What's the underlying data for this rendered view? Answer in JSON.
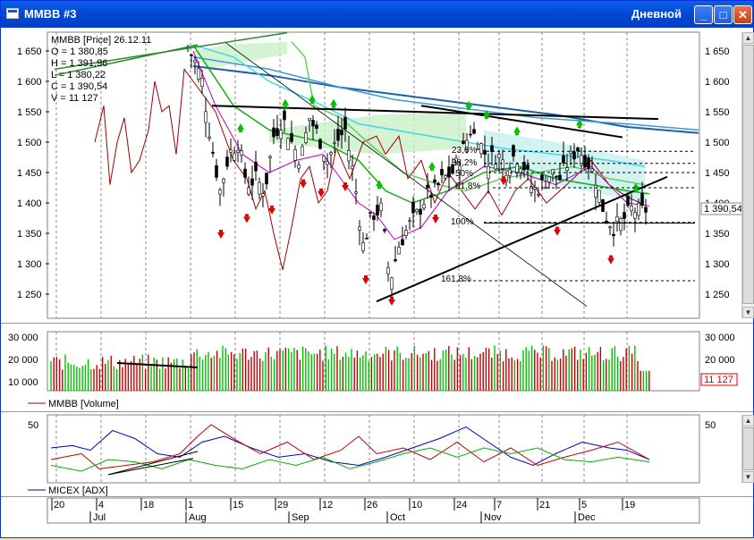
{
  "window": {
    "title": "MMBB #3",
    "timeframe": "Дневной",
    "minimize_glyph": "_",
    "maximize_glyph": "□",
    "close_glyph": "✕"
  },
  "price_panel": {
    "header": "MMBB [Price] 26.12.11",
    "ohlc": {
      "open": "O = 1 380,85",
      "high": "H = 1 391,96",
      "low": "L = 1 380,22",
      "close": "C = 1 390,54",
      "volume": "V = 11 127"
    },
    "y_ticks": [
      "1 650",
      "1 600",
      "1 550",
      "1 500",
      "1 450",
      "1 400",
      "1 350",
      "1 300",
      "1 250"
    ],
    "last_value": "1 390,54",
    "fib_labels": [
      "23,6%",
      "38,2%",
      "50%",
      "61,8%",
      "100%",
      "161,8%"
    ],
    "up_color": "#00c000",
    "down_color": "#e00000"
  },
  "volume_panel": {
    "legend": "MMBB [Volume]",
    "y_ticks": [
      "30 000",
      "20 000",
      "10 000"
    ],
    "last_value": "11 127"
  },
  "adx_panel": {
    "legend": "MICEX [ADX]",
    "y_ticks": [
      "50"
    ]
  },
  "x_axis": {
    "days": [
      "20",
      "4",
      "18",
      "1",
      "15",
      "29",
      "12",
      "26",
      "10",
      "24",
      "7",
      "21",
      "5",
      "19"
    ],
    "months": [
      "Jul",
      "Aug",
      "Sep",
      "Oct",
      "Nov",
      "Dec"
    ]
  }
}
